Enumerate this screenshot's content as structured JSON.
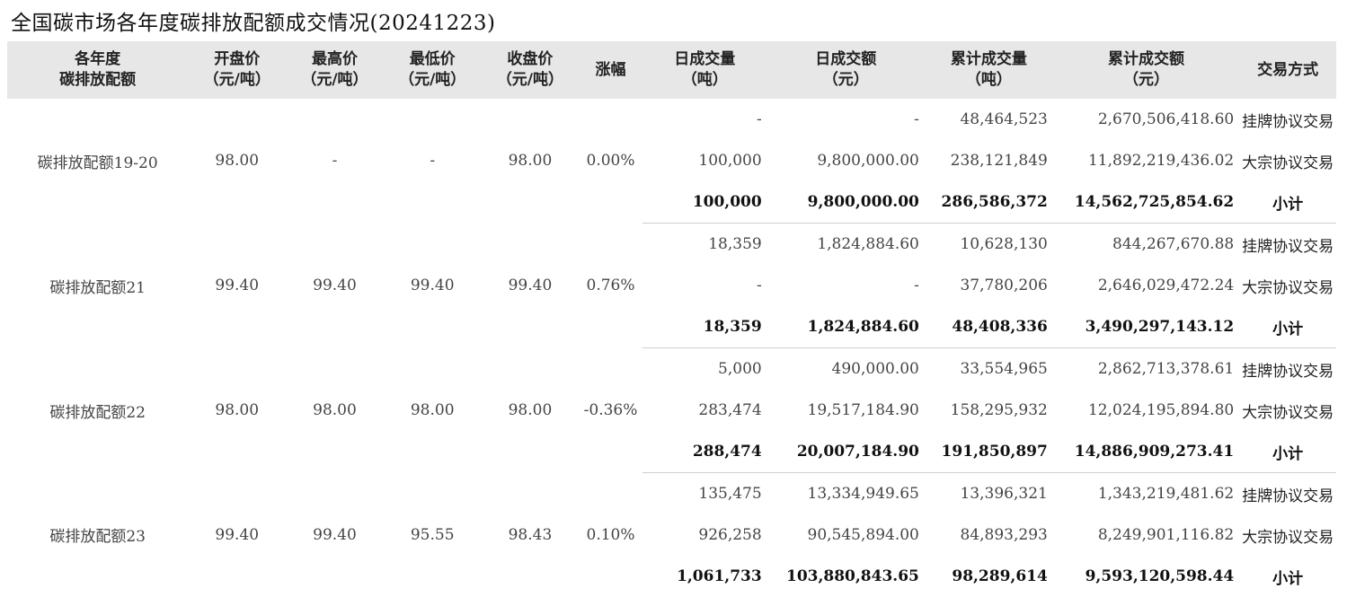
{
  "title": "全国碳市场各年度碳排放配额成交情况(20241223)",
  "headers": [
    [
      "各年度",
      "碳排放配额"
    ],
    [
      "开盘价",
      "（元/吨）"
    ],
    [
      "最高价",
      "（元/吨）"
    ],
    [
      "最低价",
      "（元/吨）"
    ],
    [
      "收盘价",
      "（元/吨）"
    ],
    [
      "涨幅",
      ""
    ],
    [
      "日成交量",
      "（吨）"
    ],
    [
      "日成交额",
      "（元）"
    ],
    [
      "累计成交量",
      "（吨）"
    ],
    [
      "累计成交额",
      "（元）"
    ],
    [
      "交易方式",
      ""
    ]
  ],
  "groups": [
    {
      "name": "碳排放配额19-20",
      "open": "98.00",
      "high": "-",
      "low": "-",
      "close": "98.00",
      "change": "0.00%",
      "rows": [
        {
          "vol": "-",
          "amt": "-",
          "cum_vol": "48,464,523",
          "cum_amt": "2,670,506,418.60",
          "method": "挂牌协议交易"
        },
        {
          "vol": "100,000",
          "amt": "9,800,000.00",
          "cum_vol": "238,121,849",
          "cum_amt": "11,892,219,436.02",
          "method": "大宗协议交易"
        },
        {
          "vol": "100,000",
          "amt": "9,800,000.00",
          "cum_vol": "286,586,372",
          "cum_amt": "14,562,725,854.62",
          "method": "小计"
        }
      ]
    },
    {
      "name": "碳排放配额21",
      "open": "99.40",
      "high": "99.40",
      "low": "99.40",
      "close": "99.40",
      "change": "0.76%",
      "rows": [
        {
          "vol": "18,359",
          "amt": "1,824,884.60",
          "cum_vol": "10,628,130",
          "cum_amt": "844,267,670.88",
          "method": "挂牌协议交易"
        },
        {
          "vol": "-",
          "amt": "-",
          "cum_vol": "37,780,206",
          "cum_amt": "2,646,029,472.24",
          "method": "大宗协议交易"
        },
        {
          "vol": "18,359",
          "amt": "1,824,884.60",
          "cum_vol": "48,408,336",
          "cum_amt": "3,490,297,143.12",
          "method": "小计"
        }
      ]
    },
    {
      "name": "碳排放配额22",
      "open": "98.00",
      "high": "98.00",
      "low": "98.00",
      "close": "98.00",
      "change": "-0.36%",
      "rows": [
        {
          "vol": "5,000",
          "amt": "490,000.00",
          "cum_vol": "33,554,965",
          "cum_amt": "2,862,713,378.61",
          "method": "挂牌协议交易"
        },
        {
          "vol": "283,474",
          "amt": "19,517,184.90",
          "cum_vol": "158,295,932",
          "cum_amt": "12,024,195,894.80",
          "method": "大宗协议交易"
        },
        {
          "vol": "288,474",
          "amt": "20,007,184.90",
          "cum_vol": "191,850,897",
          "cum_amt": "14,886,909,273.41",
          "method": "小计"
        }
      ]
    },
    {
      "name": "碳排放配额23",
      "open": "99.40",
      "high": "99.40",
      "low": "95.55",
      "close": "98.43",
      "change": "0.10%",
      "rows": [
        {
          "vol": "135,475",
          "amt": "13,334,949.65",
          "cum_vol": "13,396,321",
          "cum_amt": "1,343,219,481.62",
          "method": "挂牌协议交易"
        },
        {
          "vol": "926,258",
          "amt": "90,545,894.00",
          "cum_vol": "84,893,293",
          "cum_amt": "8,249,901,116.82",
          "method": "大宗协议交易"
        },
        {
          "vol": "1,061,733",
          "amt": "103,880,843.65",
          "cum_vol": "98,289,614",
          "cum_amt": "9,593,120,598.44",
          "method": "小计"
        }
      ]
    }
  ]
}
